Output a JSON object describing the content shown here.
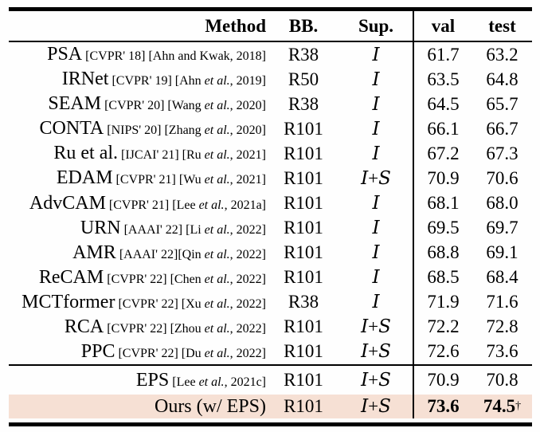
{
  "colors": {
    "highlight_row": "#f6e0d4",
    "rule": "#000000",
    "text": "#000000",
    "background": "#fefefe"
  },
  "table": {
    "header": {
      "method": "Method",
      "bb": "BB.",
      "sup": "Sup.",
      "val": "val",
      "test": "test"
    },
    "rows": [
      {
        "method": "PSA",
        "cite": "[CVPR' 18] [Ahn and Kwak, 2018]",
        "bb": "R38",
        "sup": "I",
        "val": "61.7",
        "test": "63.2"
      },
      {
        "method": "IRNet",
        "cite": "[CVPR' 19] [Ahn et al., 2019]",
        "bb": "R50",
        "sup": "I",
        "val": "63.5",
        "test": "64.8"
      },
      {
        "method": "SEAM",
        "cite": "[CVPR' 20] [Wang et al., 2020]",
        "bb": "R38",
        "sup": "I",
        "val": "64.5",
        "test": "65.7"
      },
      {
        "method": "CONTA",
        "cite": "[NIPS' 20] [Zhang et al., 2020]",
        "bb": "R101",
        "sup": "I",
        "val": "66.1",
        "test": "66.7"
      },
      {
        "method": "Ru et al.",
        "cite": "[IJCAI' 21] [Ru et al., 2021]",
        "bb": "R101",
        "sup": "I",
        "val": "67.2",
        "test": "67.3"
      },
      {
        "method": "EDAM",
        "cite": "[CVPR' 21] [Wu et al., 2021]",
        "bb": "R101",
        "sup": "I + S",
        "val": "70.9",
        "test": "70.6"
      },
      {
        "method": "AdvCAM",
        "cite": "[CVPR' 21] [Lee et al., 2021a]",
        "bb": "R101",
        "sup": "I",
        "val": "68.1",
        "test": "68.0"
      },
      {
        "method": "URN",
        "cite": "[AAAI' 22] [Li et al., 2022]",
        "bb": "R101",
        "sup": "I",
        "val": "69.5",
        "test": "69.7"
      },
      {
        "method": "AMR",
        "cite": "[AAAI' 22][Qin et al., 2022]",
        "bb": "R101",
        "sup": "I",
        "val": "68.8",
        "test": "69.1"
      },
      {
        "method": "ReCAM",
        "cite": "[CVPR' 22] [Chen et al., 2022]",
        "bb": "R101",
        "sup": "I",
        "val": "68.5",
        "test": "68.4"
      },
      {
        "method": "MCTformer",
        "cite": "[CVPR' 22] [Xu et al., 2022]",
        "bb": "R38",
        "sup": "I",
        "val": "71.9",
        "test": "71.6"
      },
      {
        "method": "RCA",
        "cite": "[CVPR' 22] [Zhou et al., 2022]",
        "bb": "R101",
        "sup": "I + S",
        "val": "72.2",
        "test": "72.8"
      },
      {
        "method": "PPC",
        "cite": "[CVPR' 22] [Du et al., 2022]",
        "bb": "R101",
        "sup": "I + S",
        "val": "72.6",
        "test": "73.6"
      }
    ],
    "footer_rows": [
      {
        "method": "EPS",
        "cite": "[Lee et al., 2021c]",
        "bb": "R101",
        "sup": "I + S",
        "val": "70.9",
        "test": "70.8"
      },
      {
        "method": "Ours (w/ EPS)",
        "cite": "",
        "bb": "R101",
        "sup": "I + S",
        "val": "73.6",
        "test": "74.5",
        "test_suffix": "†",
        "bold": true,
        "highlight": true
      }
    ]
  }
}
